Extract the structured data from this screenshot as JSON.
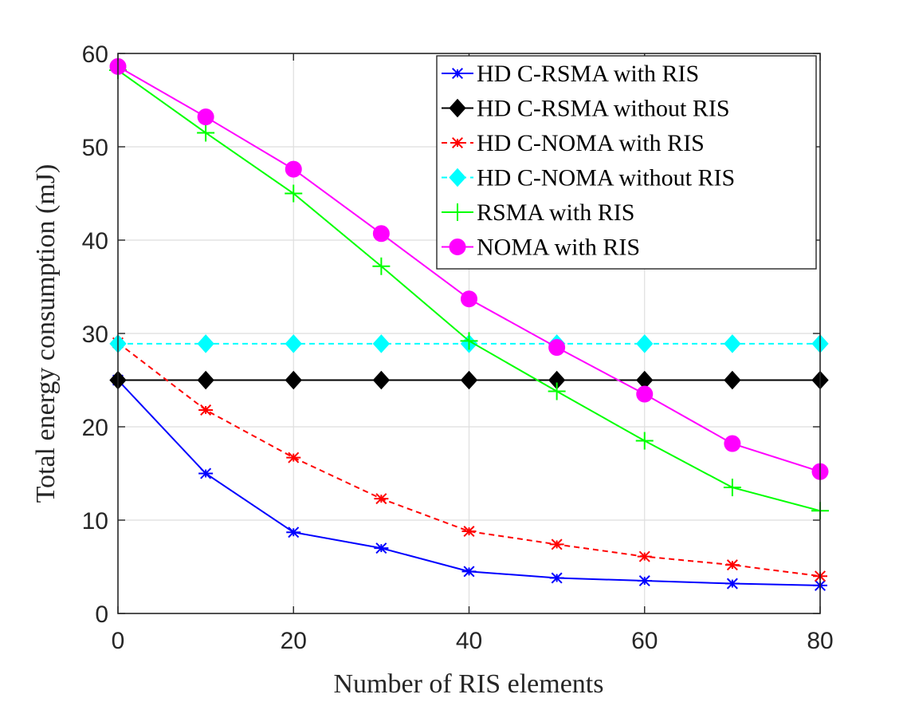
{
  "chart_data": {
    "type": "line",
    "xlabel": "Number of RIS elements",
    "ylabel": "Total energy consumption (mJ)",
    "xlim": [
      0,
      80
    ],
    "ylim": [
      0,
      60
    ],
    "xticks": [
      0,
      20,
      40,
      60,
      80
    ],
    "yticks": [
      0,
      10,
      20,
      30,
      40,
      50,
      60
    ],
    "grid": true,
    "legend_position": "top-right",
    "x": [
      0,
      10,
      20,
      30,
      40,
      50,
      60,
      70,
      80
    ],
    "series": [
      {
        "name": "HD C-RSMA with RIS",
        "color": "#0000ff",
        "marker": "asterisk",
        "dash": "solid",
        "values": [
          25.0,
          15.0,
          8.7,
          7.0,
          4.5,
          3.8,
          3.5,
          3.2,
          3.0
        ]
      },
      {
        "name": "HD C-RSMA without RIS",
        "color": "#000000",
        "marker": "diamond",
        "dash": "solid",
        "values": [
          25.0,
          25.0,
          25.0,
          25.0,
          25.0,
          25.0,
          25.0,
          25.0,
          25.0
        ]
      },
      {
        "name": "HD C-NOMA with RIS",
        "color": "#ff0000",
        "marker": "asterisk",
        "dash": "dashed",
        "values": [
          29.0,
          21.8,
          16.7,
          12.3,
          8.8,
          7.4,
          6.1,
          5.2,
          4.0
        ]
      },
      {
        "name": "HD C-NOMA without RIS",
        "color": "#00ffff",
        "marker": "diamond",
        "dash": "dashed",
        "values": [
          28.9,
          28.9,
          28.9,
          28.9,
          28.9,
          28.9,
          28.9,
          28.9,
          28.9
        ]
      },
      {
        "name": "RSMA with RIS",
        "color": "#00ff00",
        "marker": "plus",
        "dash": "solid",
        "values": [
          58.2,
          51.5,
          45.0,
          37.2,
          29.2,
          23.8,
          18.5,
          13.5,
          11.0
        ]
      },
      {
        "name": "NOMA with RIS",
        "color": "#ff00ff",
        "marker": "circle",
        "dash": "solid",
        "values": [
          58.6,
          53.2,
          47.6,
          40.7,
          33.7,
          28.5,
          23.5,
          18.2,
          15.2
        ]
      }
    ]
  }
}
